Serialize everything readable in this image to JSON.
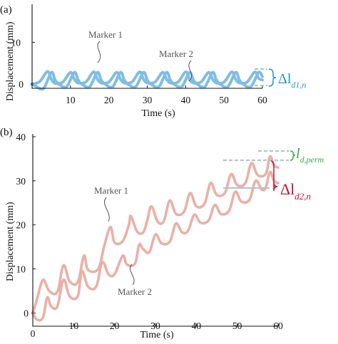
{
  "colors": {
    "blue_series": "#80bde3",
    "blue_point": "#4a98cc",
    "red_series": "#eab0a6",
    "red_point": "#d88a7e",
    "delta_blue": "#1f96cd",
    "delta_red": "#c8102e",
    "perm_green": "#3aa64a",
    "guide_gray": "#b9c3cc",
    "axis": "#111111",
    "annotation": "#555555"
  },
  "chart_data": [
    {
      "type": "line",
      "panel_label": "(a)",
      "xlabel": "Time (s)",
      "ylabel": "Displacement (mm)",
      "xlim": [
        0,
        60
      ],
      "ylim": [
        -1,
        15
      ],
      "xticks": [
        10,
        20,
        30,
        40,
        50,
        60
      ],
      "yticks": [
        0,
        10
      ],
      "grid": false,
      "annotations": [
        {
          "text": "Marker 1",
          "target": [
            16,
            3
          ]
        },
        {
          "text": "Marker 2",
          "target": [
            42,
            2
          ]
        }
      ],
      "delta_label": "Δl",
      "delta_subscript": "d1,n",
      "series": [
        {
          "points": [
            [
              0,
              0
            ],
            [
              2,
              0.6
            ],
            [
              4,
              3.0
            ],
            [
              5,
              1.2
            ],
            [
              6,
              0.2
            ],
            [
              8,
              0.5
            ],
            [
              10,
              2.8
            ],
            [
              11,
              1.2
            ],
            [
              12,
              0.3
            ],
            [
              14,
              0.5
            ],
            [
              16,
              2.9
            ],
            [
              17,
              1.2
            ],
            [
              18,
              0.3
            ],
            [
              20,
              0.5
            ],
            [
              22,
              2.8
            ],
            [
              23,
              1.2
            ],
            [
              24,
              0.3
            ],
            [
              26,
              0.5
            ],
            [
              28,
              2.9
            ],
            [
              29,
              1.2
            ],
            [
              30,
              0.3
            ],
            [
              32,
              0.5
            ],
            [
              34,
              2.8
            ],
            [
              35,
              1.2
            ],
            [
              36,
              0.3
            ],
            [
              38,
              0.5
            ],
            [
              40,
              2.9
            ],
            [
              41,
              1.2
            ],
            [
              42,
              0.3
            ],
            [
              44,
              0.5
            ],
            [
              46,
              2.8
            ],
            [
              47,
              1.2
            ],
            [
              48,
              0.3
            ],
            [
              50,
              0.5
            ],
            [
              52,
              2.9
            ],
            [
              53,
              1.2
            ],
            [
              54,
              0.3
            ],
            [
              56,
              0.5
            ],
            [
              58,
              2.9
            ],
            [
              59,
              1.4
            ],
            [
              60,
              1.0
            ]
          ]
        },
        {
          "points": [
            [
              0,
              0
            ],
            [
              1,
              -0.5
            ],
            [
              3,
              -1.0
            ],
            [
              5,
              2.8
            ],
            [
              6,
              1.0
            ],
            [
              7,
              0.0
            ],
            [
              9,
              -0.6
            ],
            [
              11,
              2.8
            ],
            [
              12,
              1.0
            ],
            [
              13,
              0.0
            ],
            [
              15,
              -0.6
            ],
            [
              17,
              2.8
            ],
            [
              18,
              1.0
            ],
            [
              19,
              0.0
            ],
            [
              21,
              -0.6
            ],
            [
              23,
              2.8
            ],
            [
              24,
              1.0
            ],
            [
              25,
              0.0
            ],
            [
              27,
              -0.6
            ],
            [
              29,
              2.8
            ],
            [
              30,
              1.0
            ],
            [
              31,
              0.0
            ],
            [
              33,
              -0.6
            ],
            [
              35,
              2.8
            ],
            [
              36,
              1.0
            ],
            [
              37,
              0.0
            ],
            [
              39,
              -0.6
            ],
            [
              41,
              2.8
            ],
            [
              42,
              1.0
            ],
            [
              43,
              0.0
            ],
            [
              45,
              -0.6
            ],
            [
              47,
              2.8
            ],
            [
              48,
              1.0
            ],
            [
              49,
              0.0
            ],
            [
              51,
              -0.6
            ],
            [
              53,
              2.8
            ],
            [
              54,
              1.0
            ],
            [
              55,
              0.0
            ],
            [
              57,
              -0.6
            ],
            [
              59,
              2.8
            ],
            [
              60,
              1.8
            ]
          ]
        }
      ]
    },
    {
      "type": "line",
      "panel_label": "(b)",
      "xlabel": "Time (s)",
      "ylabel": "Displacement (mm)",
      "xlim": [
        0,
        60
      ],
      "ylim": [
        -3,
        40
      ],
      "xticks": [
        0,
        10,
        20,
        30,
        40,
        50,
        60
      ],
      "yticks": [
        0,
        10,
        20,
        30,
        40
      ],
      "grid": false,
      "annotations": [
        {
          "text": "Marker 1",
          "target": [
            19,
            20
          ]
        },
        {
          "text": "Marker 2",
          "target": [
            23,
            11
          ]
        }
      ],
      "perm_label": "l",
      "perm_subscript": "d,perm",
      "delta_label": "Δl",
      "delta_subscript": "d2,n",
      "series": [
        {
          "points": [
            [
              0,
              0
            ],
            [
              1.0,
              3.0
            ],
            [
              2.5,
              7.5
            ],
            [
              4,
              5.0
            ],
            [
              6,
              4.8
            ],
            [
              7.5,
              10.8
            ],
            [
              9,
              7.2
            ],
            [
              11,
              7.0
            ],
            [
              12.5,
              13.0
            ],
            [
              13.5,
              9.8
            ],
            [
              16,
              10.0
            ],
            [
              17.5,
              15.3
            ],
            [
              19,
              19.5
            ],
            [
              20,
              16.0
            ],
            [
              22,
              16.3
            ],
            [
              23.5,
              20.0
            ],
            [
              24,
              22.0
            ],
            [
              25.5,
              18.5
            ],
            [
              27,
              18.3
            ],
            [
              28,
              21.0
            ],
            [
              29,
              24.2
            ],
            [
              30.5,
              20.8
            ],
            [
              32,
              20.8
            ],
            [
              33.5,
              25.5
            ],
            [
              35,
              22.5
            ],
            [
              37,
              23.0
            ],
            [
              38.5,
              27.2
            ],
            [
              40,
              24.2
            ],
            [
              42,
              24.8
            ],
            [
              43.5,
              29.5
            ],
            [
              45,
              26.8
            ],
            [
              47,
              27.3
            ],
            [
              48.5,
              31.5
            ],
            [
              50,
              29.0
            ],
            [
              52,
              29.5
            ],
            [
              53.5,
              34.0
            ],
            [
              55,
              31.3
            ],
            [
              57,
              31.6
            ],
            [
              58,
              35.5
            ],
            [
              59,
              33.5
            ],
            [
              60,
              33.0
            ]
          ]
        },
        {
          "points": [
            [
              0,
              0
            ],
            [
              1,
              -1.5
            ],
            [
              2.5,
              -1.0
            ],
            [
              3.5,
              3.5
            ],
            [
              4.5,
              1.5
            ],
            [
              6,
              1.5
            ],
            [
              7.5,
              7.5
            ],
            [
              9,
              3.8
            ],
            [
              11,
              3.8
            ],
            [
              12,
              9.5
            ],
            [
              13.5,
              6.0
            ],
            [
              15.5,
              6.0
            ],
            [
              17,
              11.5
            ],
            [
              18.5,
              8.8
            ],
            [
              20,
              8.8
            ],
            [
              22,
              13.0
            ],
            [
              23,
              11.0
            ],
            [
              25,
              11.2
            ],
            [
              26,
              15.5
            ],
            [
              27,
              14.5
            ],
            [
              28.5,
              13.8
            ],
            [
              30,
              17.8
            ],
            [
              31.5,
              15.8
            ],
            [
              33.5,
              16.2
            ],
            [
              35,
              20.3
            ],
            [
              36.5,
              18.3
            ],
            [
              38,
              18.7
            ],
            [
              39.5,
              22.3
            ],
            [
              41,
              20.5
            ],
            [
              43,
              21.0
            ],
            [
              44.5,
              24.5
            ],
            [
              46,
              22.5
            ],
            [
              48,
              23.2
            ],
            [
              49.5,
              27.5
            ],
            [
              51,
              25.3
            ],
            [
              53,
              25.7
            ],
            [
              54.5,
              30.0
            ],
            [
              56,
              28.0
            ],
            [
              57,
              28.5
            ],
            [
              58,
              32.0
            ],
            [
              59,
              30.0
            ],
            [
              60,
              29.5
            ]
          ]
        }
      ]
    }
  ]
}
